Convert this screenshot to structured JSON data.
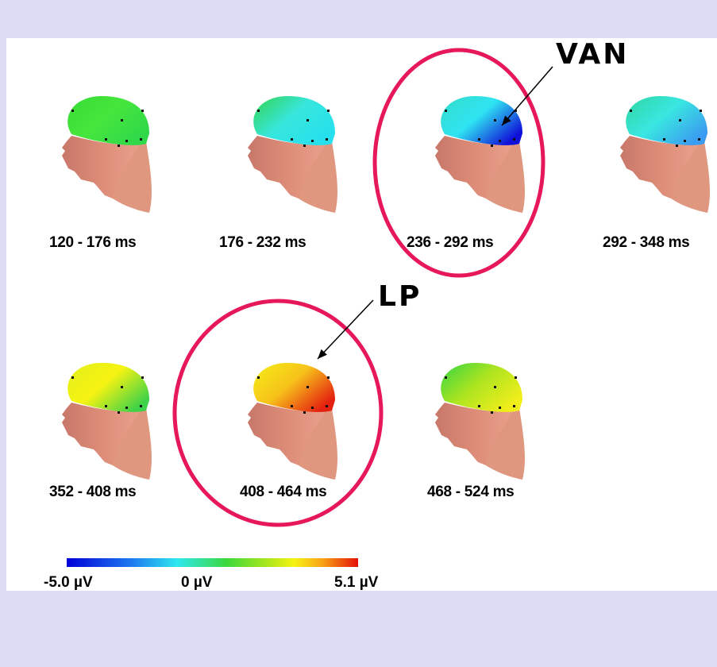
{
  "heads": [
    {
      "label": "120 - 176 ms",
      "colors": [
        "#36dc35",
        "#46e63c",
        "#2fd84a"
      ]
    },
    {
      "label": "176 - 232 ms",
      "colors": [
        "#34d44c",
        "#37e6dc",
        "#26e0ee"
      ]
    },
    {
      "label": "236 - 292 ms",
      "colors": [
        "#34dcc8",
        "#2fe4f2",
        "#1010d8"
      ]
    },
    {
      "label": "292 - 348 ms",
      "colors": [
        "#2fd6a0",
        "#39e7e1",
        "#3a9cf0"
      ]
    },
    {
      "label": "352 - 408 ms",
      "colors": [
        "#e2ef19",
        "#f6f312",
        "#40d248"
      ]
    },
    {
      "label": "408 - 464 ms",
      "colors": [
        "#f3ef16",
        "#f7c21a",
        "#e42010"
      ]
    },
    {
      "label": "468 - 524 ms",
      "colors": [
        "#34d644",
        "#aee420",
        "#f2ee1a"
      ]
    }
  ],
  "annotations": {
    "van": "VAN",
    "lp": "LP"
  },
  "colorbar": {
    "min_label": "-5.0 µV",
    "mid_label": "0 µV",
    "max_label": "5.1 µV"
  },
  "colors": {
    "circle": "#e6185a",
    "skin": "#d88870",
    "background": "#dcdcf4"
  }
}
